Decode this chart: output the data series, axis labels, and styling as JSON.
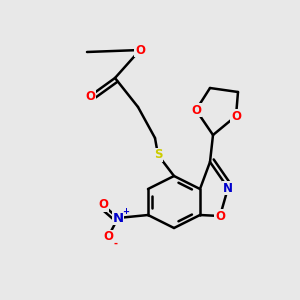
{
  "bg_color": "#e8e8e8",
  "atom_colors": {
    "O": "#ff0000",
    "N": "#0000cc",
    "S": "#cccc00",
    "C": "#000000"
  },
  "lw": 1.8,
  "fs": 8.5
}
